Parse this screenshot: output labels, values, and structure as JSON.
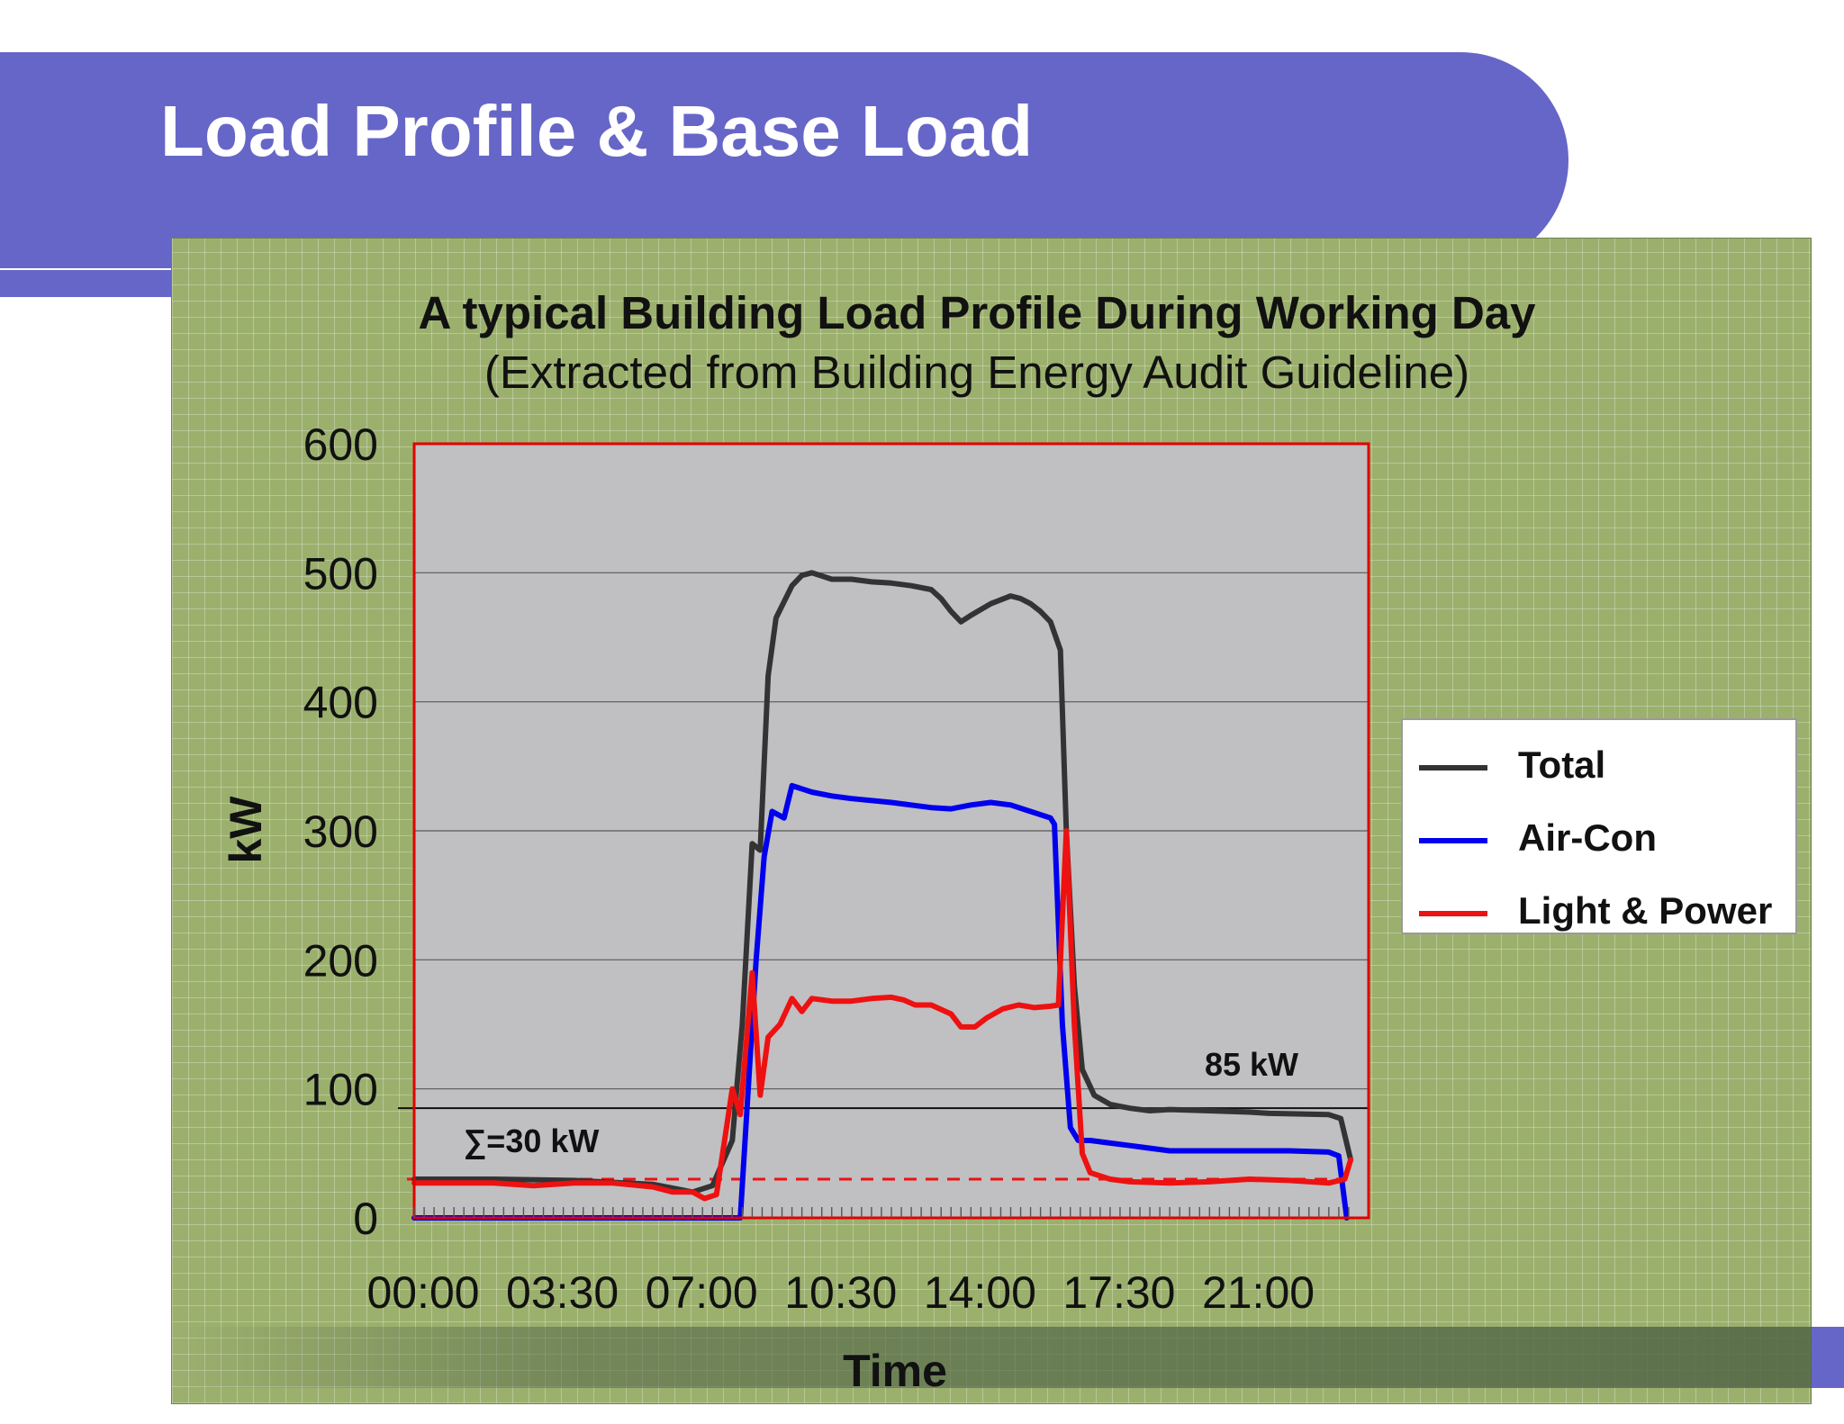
{
  "slide": {
    "title": "Load Profile & Base Load",
    "banner_color": "#6666c8",
    "panel_color": "#9cb06e"
  },
  "chart_data": {
    "type": "line",
    "title": "A typical Building Load Profile During Working Day",
    "subtitle": "(Extracted from Building Energy Audit Guideline)",
    "xlabel": "Time",
    "ylabel": "kW",
    "ylim": [
      0,
      600
    ],
    "yticks": [
      0,
      100,
      200,
      300,
      400,
      500,
      600
    ],
    "xlim": [
      0,
      24
    ],
    "x_tick_labels": [
      "00:00",
      "03:30",
      "07:00",
      "10:30",
      "14:00",
      "17:30",
      "21:00"
    ],
    "x_tick_values": [
      0,
      3.5,
      7,
      10.5,
      14,
      17.5,
      21
    ],
    "grid": true,
    "plot_bg": "#c0bfc2",
    "plot_border": "#e00000",
    "legend_position": "right",
    "series": [
      {
        "name": "Total",
        "color": "#333333",
        "points": [
          [
            0,
            30
          ],
          [
            2,
            30
          ],
          [
            4,
            29
          ],
          [
            6,
            26
          ],
          [
            7,
            20
          ],
          [
            7.5,
            25
          ],
          [
            8,
            60
          ],
          [
            8.25,
            150
          ],
          [
            8.5,
            290
          ],
          [
            8.7,
            285
          ],
          [
            8.9,
            420
          ],
          [
            9.1,
            465
          ],
          [
            9.5,
            490
          ],
          [
            9.75,
            498
          ],
          [
            10,
            500
          ],
          [
            10.5,
            495
          ],
          [
            11,
            495
          ],
          [
            11.5,
            493
          ],
          [
            12,
            492
          ],
          [
            12.5,
            490
          ],
          [
            13,
            487
          ],
          [
            13.25,
            480
          ],
          [
            13.5,
            470
          ],
          [
            13.75,
            462
          ],
          [
            14,
            467
          ],
          [
            14.5,
            476
          ],
          [
            15,
            482
          ],
          [
            15.25,
            480
          ],
          [
            15.5,
            476
          ],
          [
            15.75,
            470
          ],
          [
            16,
            462
          ],
          [
            16.25,
            440
          ],
          [
            16.4,
            300
          ],
          [
            16.6,
            180
          ],
          [
            16.8,
            115
          ],
          [
            17.1,
            95
          ],
          [
            17.5,
            88
          ],
          [
            18,
            85
          ],
          [
            18.5,
            83
          ],
          [
            19,
            84
          ],
          [
            20,
            83
          ],
          [
            21,
            82
          ],
          [
            21.5,
            81
          ],
          [
            23,
            80
          ],
          [
            23.3,
            77
          ],
          [
            23.55,
            45
          ]
        ]
      },
      {
        "name": "Air-Con",
        "color": "#0000ee",
        "points": [
          [
            0,
            0
          ],
          [
            8,
            0
          ],
          [
            8.2,
            0
          ],
          [
            8.4,
            100
          ],
          [
            8.6,
            200
          ],
          [
            8.8,
            280
          ],
          [
            9,
            315
          ],
          [
            9.3,
            310
          ],
          [
            9.5,
            335
          ],
          [
            10,
            330
          ],
          [
            10.5,
            327
          ],
          [
            11,
            325
          ],
          [
            12,
            322
          ],
          [
            13,
            318
          ],
          [
            13.5,
            317
          ],
          [
            14,
            320
          ],
          [
            14.5,
            322
          ],
          [
            15,
            320
          ],
          [
            15.5,
            315
          ],
          [
            16,
            310
          ],
          [
            16.1,
            305
          ],
          [
            16.3,
            150
          ],
          [
            16.5,
            70
          ],
          [
            16.7,
            60
          ],
          [
            17,
            60
          ],
          [
            17.5,
            58
          ],
          [
            18,
            56
          ],
          [
            18.5,
            54
          ],
          [
            19,
            52
          ],
          [
            22,
            52
          ],
          [
            23,
            51
          ],
          [
            23.25,
            48
          ],
          [
            23.45,
            0
          ]
        ]
      },
      {
        "name": "Light & Power",
        "color": "#ee1111",
        "points": [
          [
            0,
            27
          ],
          [
            2,
            27
          ],
          [
            3,
            25
          ],
          [
            4,
            27
          ],
          [
            5,
            27
          ],
          [
            6,
            24
          ],
          [
            6.5,
            20
          ],
          [
            7,
            20
          ],
          [
            7.3,
            15
          ],
          [
            7.6,
            18
          ],
          [
            8,
            100
          ],
          [
            8.2,
            80
          ],
          [
            8.5,
            190
          ],
          [
            8.7,
            95
          ],
          [
            8.9,
            140
          ],
          [
            9.2,
            150
          ],
          [
            9.5,
            170
          ],
          [
            9.75,
            160
          ],
          [
            10,
            170
          ],
          [
            10.5,
            168
          ],
          [
            11,
            168
          ],
          [
            11.5,
            170
          ],
          [
            12,
            171
          ],
          [
            12.3,
            169
          ],
          [
            12.6,
            165
          ],
          [
            13,
            165
          ],
          [
            13.5,
            158
          ],
          [
            13.75,
            148
          ],
          [
            14.1,
            148
          ],
          [
            14.4,
            155
          ],
          [
            14.8,
            162
          ],
          [
            15.2,
            165
          ],
          [
            15.6,
            163
          ],
          [
            16,
            164
          ],
          [
            16.2,
            165
          ],
          [
            16.4,
            300
          ],
          [
            16.6,
            150
          ],
          [
            16.8,
            50
          ],
          [
            17,
            35
          ],
          [
            17.5,
            30
          ],
          [
            18,
            28
          ],
          [
            19,
            27
          ],
          [
            20,
            28
          ],
          [
            21,
            30
          ],
          [
            22,
            29
          ],
          [
            23,
            27
          ],
          [
            23.4,
            30
          ],
          [
            23.55,
            45
          ]
        ]
      }
    ],
    "reference_lines": [
      {
        "label": "85 kW",
        "value": 85,
        "style": "solid",
        "color": "#111111"
      },
      {
        "label": "∑=30 kW",
        "value": 30,
        "style": "dashed",
        "color": "#ee1111"
      }
    ]
  }
}
